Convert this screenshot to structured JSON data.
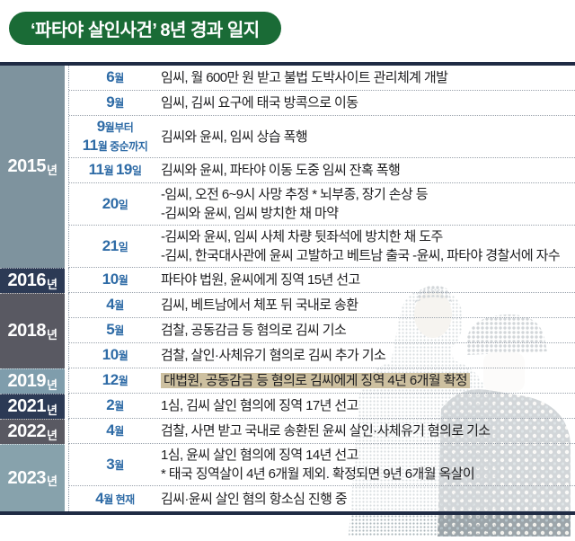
{
  "title": "‘파타야 살인사건’ 8년 경과 일지",
  "colors": {
    "title_bg": "#1a6b36",
    "table_border": "#1f2b44",
    "month_blue": "#2e6ba6",
    "highlight_tan": "#cdc0a0",
    "event_text": "#1d1d1f",
    "year_2015": "#7e939e",
    "year_2016": "#2c3a55",
    "year_2018": "#595962",
    "year_2019": "#7f9dac",
    "year_2021": "#2c3a55",
    "year_2022": "#595962",
    "year_2023": "#87a2ac"
  },
  "illustration": {
    "name": "suspects-halftone-photo",
    "description": "halftone photo of two suspects, one wearing cap and face mask"
  },
  "timeline": {
    "groups": [
      {
        "year": "2015",
        "year_suffix": "년",
        "color": "#7e939e",
        "rows": [
          {
            "month": [
              [
                [
                  "6",
                  1
                ],
                [
                  "월",
                  0
                ]
              ]
            ],
            "events": [
              {
                "text": "임씨, 월 600만 원 받고 불법 도박사이트 관리체계 개발",
                "highlight": false
              }
            ]
          },
          {
            "month": [
              [
                [
                  "9",
                  1
                ],
                [
                  "월",
                  0
                ]
              ]
            ],
            "events": [
              {
                "text": "임씨, 김씨 요구에 태국 방콕으로 이동",
                "highlight": false
              }
            ]
          },
          {
            "month": [
              [
                [
                  "9",
                  1
                ],
                [
                  "월부터",
                  0
                ]
              ],
              [
                [
                  "11",
                  1
                ],
                [
                  "월 중순까지",
                  0
                ]
              ]
            ],
            "events": [
              {
                "text": "김씨와 윤씨, 임씨 상습 폭행",
                "highlight": false
              }
            ]
          },
          {
            "month": [
              [
                [
                  "11",
                  1
                ],
                [
                  "월 ",
                  0
                ],
                [
                  "19",
                  1
                ],
                [
                  "일",
                  0
                ]
              ]
            ],
            "events": [
              {
                "text": "김씨와 윤씨, 파타야 이동 도중 임씨 잔혹 폭행",
                "highlight": false
              }
            ]
          },
          {
            "month": [
              [
                [
                  "20",
                  1
                ],
                [
                  "일",
                  0
                ]
              ]
            ],
            "events": [
              {
                "text": "-임씨, 오전 6~9시 사망 추정 * 뇌부종, 장기 손상 등",
                "highlight": false
              },
              {
                "text": "-김씨와 윤씨, 임씨 방치한 채 마약",
                "highlight": false
              }
            ]
          },
          {
            "month": [
              [
                [
                  "21",
                  1
                ],
                [
                  "일",
                  0
                ]
              ]
            ],
            "events": [
              {
                "text": "-김씨와 윤씨, 임씨 사체 차량 뒷좌석에 방치한 채 도주",
                "highlight": false
              },
              {
                "text": "-김씨, 한국대사관에 윤씨 고발하고 베트남 출국 -윤씨, 파타야 경찰서에 자수",
                "highlight": false
              }
            ]
          }
        ]
      },
      {
        "year": "2016",
        "year_suffix": "년",
        "color": "#2c3a55",
        "rows": [
          {
            "month": [
              [
                [
                  "10",
                  1
                ],
                [
                  "월",
                  0
                ]
              ]
            ],
            "events": [
              {
                "text": "파타야 법원, 윤씨에게 징역 15년 선고",
                "highlight": false
              }
            ]
          }
        ]
      },
      {
        "year": "2018",
        "year_suffix": "년",
        "color": "#595962",
        "rows": [
          {
            "month": [
              [
                [
                  "4",
                  1
                ],
                [
                  "월",
                  0
                ]
              ]
            ],
            "events": [
              {
                "text": "김씨, 베트남에서 체포 뒤 국내로 송환",
                "highlight": false
              }
            ]
          },
          {
            "month": [
              [
                [
                  "5",
                  1
                ],
                [
                  "월",
                  0
                ]
              ]
            ],
            "events": [
              {
                "text": "검찰, 공동감금 등 혐의로 김씨 기소",
                "highlight": false
              }
            ]
          },
          {
            "month": [
              [
                [
                  "10",
                  1
                ],
                [
                  "월",
                  0
                ]
              ]
            ],
            "events": [
              {
                "text": "검찰, 살인·사체유기 혐의로 김씨 추가 기소",
                "highlight": false
              }
            ]
          }
        ]
      },
      {
        "year": "2019",
        "year_suffix": "년",
        "color": "#7f9dac",
        "rows": [
          {
            "month": [
              [
                [
                  "12",
                  1
                ],
                [
                  "월",
                  0
                ]
              ]
            ],
            "events": [
              {
                "text": "대법원, 공동감금 등 혐의로 김씨에게 징역 4년 6개월 확정",
                "highlight": true
              }
            ]
          }
        ]
      },
      {
        "year": "2021",
        "year_suffix": "년",
        "color": "#2c3a55",
        "rows": [
          {
            "month": [
              [
                [
                  "2",
                  1
                ],
                [
                  "월",
                  0
                ]
              ]
            ],
            "events": [
              {
                "text": "1심, 김씨 살인 혐의에 징역 17년 선고",
                "highlight": false
              }
            ]
          }
        ]
      },
      {
        "year": "2022",
        "year_suffix": "년",
        "color": "#595962",
        "rows": [
          {
            "month": [
              [
                [
                  "4",
                  1
                ],
                [
                  "월",
                  0
                ]
              ]
            ],
            "events": [
              {
                "text": "검찰, 사면 받고 국내로 송환된 윤씨 살인·사체유기 혐의로 기소",
                "highlight": false
              }
            ]
          }
        ]
      },
      {
        "year": "2023",
        "year_suffix": "년",
        "color": "#87a2ac",
        "rows": [
          {
            "month": [
              [
                [
                  "3",
                  1
                ],
                [
                  "월",
                  0
                ]
              ]
            ],
            "events": [
              {
                "text": "1심, 윤씨 살인 혐의에 징역 14년 선고",
                "highlight": false
              },
              {
                "text": "* 태국 징역살이 4년 6개월 제외. 확정되면 9년 6개월 옥살이",
                "highlight": false
              }
            ]
          },
          {
            "month": [
              [
                [
                  "4",
                  1
                ],
                [
                  "월 현재",
                  0
                ]
              ]
            ],
            "events": [
              {
                "text": "김씨·윤씨 살인 혐의 항소심 진행 중",
                "highlight": false
              }
            ]
          }
        ]
      }
    ]
  }
}
